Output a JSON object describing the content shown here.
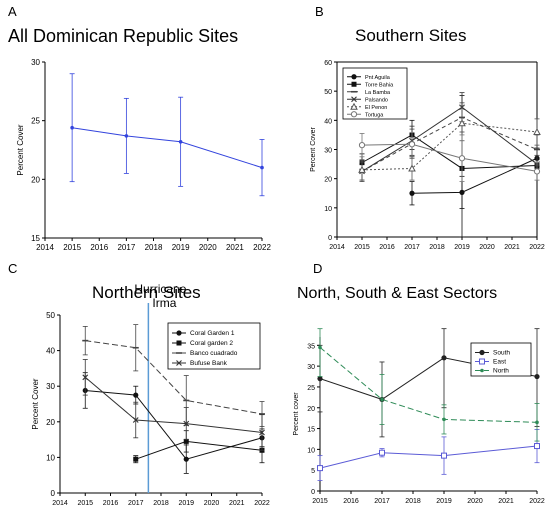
{
  "chart_data": [
    {
      "id": "A",
      "panel_label": "A",
      "title": "All Dominican Republic Sites",
      "type": "line",
      "ylabel": "Percent Cover",
      "xlabel": "",
      "xlim": [
        2014,
        2022
      ],
      "ylim": [
        15,
        30
      ],
      "xticks": [
        2014,
        2015,
        2016,
        2017,
        2018,
        2019,
        2020,
        2021,
        2022
      ],
      "yticks": [
        15,
        20,
        25,
        30
      ],
      "grid": false,
      "series": [
        {
          "color": "#3344dd",
          "dash": "",
          "marker": "dot-small",
          "points": [
            [
              2015,
              24.4,
              4.6
            ],
            [
              2017,
              23.7,
              3.2
            ],
            [
              2019,
              23.2,
              3.8
            ],
            [
              2022,
              21.0,
              2.4
            ]
          ]
        }
      ]
    },
    {
      "id": "B",
      "panel_label": "B",
      "title": "Southern Sites",
      "type": "line",
      "ylabel": "Percent Cover",
      "xlabel": "",
      "xlim": [
        2014,
        2022
      ],
      "ylim": [
        0,
        60
      ],
      "xticks": [
        2014,
        2015,
        2016,
        2017,
        2018,
        2019,
        2020,
        2021,
        2022
      ],
      "yticks": [
        0,
        10,
        20,
        30,
        40,
        50,
        60
      ],
      "grid": false,
      "legend_position": "top-left",
      "series": [
        {
          "name": "Pnt Aguila",
          "color": "#111111",
          "dash": "",
          "marker": "filled-circle",
          "points": [
            [
              2017,
              15.0,
              4.0
            ],
            [
              2019,
              15.3,
              5.5
            ],
            [
              2022,
              27.0,
              3.5
            ]
          ]
        },
        {
          "name": "Torre Bahia",
          "color": "#111111",
          "dash": "",
          "marker": "filled-square",
          "points": [
            [
              2015,
              25.5,
              3.0
            ],
            [
              2017,
              35.0,
              5.0
            ],
            [
              2019,
              23.5,
              25.0
            ],
            [
              2022,
              24.5,
              2.0
            ]
          ]
        },
        {
          "name": "La Bamba",
          "color": "#444444",
          "dash": "4,3",
          "marker": "dash",
          "points": [
            [
              2015,
              22.5,
              3.5
            ],
            [
              2017,
              32.0,
              5.0
            ],
            [
              2019,
              41.0,
              5.0
            ],
            [
              2022,
              30.0,
              5.0
            ]
          ]
        },
        {
          "name": "Palsando",
          "color": "#333333",
          "dash": "",
          "marker": "x",
          "points": [
            [
              2015,
              22.5,
              3.0
            ],
            [
              2017,
              33.0,
              5.0
            ],
            [
              2019,
              44.5,
              5.0
            ],
            [
              2022,
              25.0,
              3.0
            ]
          ]
        },
        {
          "name": "El Penon",
          "color": "#555555",
          "dash": "2,2",
          "marker": "open-triangle",
          "points": [
            [
              2015,
              23.0,
              3.5
            ],
            [
              2017,
              23.5,
              4.0
            ],
            [
              2019,
              39.0,
              6.0
            ],
            [
              2022,
              36.0,
              4.5
            ]
          ]
        },
        {
          "name": "Tortuga",
          "color": "#777777",
          "dash": "",
          "marker": "open-circle",
          "points": [
            [
              2015,
              31.5,
              4.0
            ],
            [
              2017,
              31.8,
              4.0
            ],
            [
              2019,
              27.0,
              8.0
            ],
            [
              2022,
              22.5,
              3.0
            ]
          ]
        }
      ]
    },
    {
      "id": "C",
      "panel_label": "C",
      "title": "Northern Sites",
      "type": "line",
      "ylabel": "Percent Cover",
      "xlabel": "",
      "xlim": [
        2014,
        2022
      ],
      "ylim": [
        0,
        50
      ],
      "xticks": [
        2014,
        2015,
        2016,
        2017,
        2018,
        2019,
        2020,
        2021,
        2022
      ],
      "yticks": [
        0,
        10,
        20,
        30,
        40,
        50
      ],
      "grid": false,
      "legend_position": "top-right",
      "annotation": {
        "text_line1": "Hurricane",
        "text_line2": "Irma",
        "x": 2017.5,
        "color": "#5b9bd5"
      },
      "series": [
        {
          "name": "Coral Garden 1",
          "color": "#111111",
          "dash": "",
          "marker": "filled-circle",
          "points": [
            [
              2015,
              28.8,
              5.0
            ],
            [
              2017,
              27.5,
              2.5
            ],
            [
              2019,
              9.5,
              4.0
            ],
            [
              2022,
              15.5,
              2.5
            ]
          ]
        },
        {
          "name": "Coral garden 2",
          "color": "#111111",
          "dash": "",
          "marker": "filled-square",
          "points": [
            [
              2017,
              9.5,
              1.0
            ],
            [
              2019,
              14.5,
              3.0
            ],
            [
              2022,
              12.0,
              3.5
            ]
          ]
        },
        {
          "name": "Banco cuadrado",
          "color": "#444444",
          "dash": "6,3",
          "marker": "dash",
          "points": [
            [
              2015,
              42.8,
              4.0
            ],
            [
              2017,
              40.8,
              6.5
            ],
            [
              2019,
              26.0,
              7.0
            ],
            [
              2022,
              22.2,
              3.5
            ]
          ]
        },
        {
          "name": "Bufuse Bank",
          "color": "#333333",
          "dash": "",
          "marker": "x",
          "points": [
            [
              2015,
              32.5,
              5.0
            ],
            [
              2017,
              20.5,
              5.0
            ],
            [
              2019,
              19.5,
              4.5
            ],
            [
              2022,
              17.0,
              5.0
            ]
          ]
        }
      ]
    },
    {
      "id": "D",
      "panel_label": "D",
      "title": "North, South & East Sectors",
      "type": "line",
      "ylabel": "Percent cover",
      "xlabel": "",
      "xlim": [
        2015,
        2022
      ],
      "ylim": [
        0,
        37
      ],
      "xticks": [
        2015,
        2016,
        2017,
        2018,
        2019,
        2020,
        2021,
        2022
      ],
      "yticks": [
        0,
        5,
        10,
        15,
        20,
        25,
        30,
        35
      ],
      "grid": false,
      "legend_position": "top-right",
      "series": [
        {
          "name": "South",
          "color": "#222222",
          "dash": "",
          "marker": "filled-circle",
          "points": [
            [
              2015,
              27.0,
              8.0
            ],
            [
              2017,
              22.0,
              9.0
            ],
            [
              2019,
              32.0,
              12.0
            ],
            [
              2022,
              27.5,
              12.0
            ]
          ]
        },
        {
          "name": "East",
          "color": "#5b5bd6",
          "dash": "",
          "marker": "open-square",
          "points": [
            [
              2015,
              5.5,
              3.0
            ],
            [
              2017,
              9.2,
              1.0
            ],
            [
              2019,
              8.5,
              4.5
            ],
            [
              2022,
              10.8,
              4.0
            ]
          ]
        },
        {
          "name": "North",
          "color": "#2e8b57",
          "dash": "6,3",
          "marker": "filled-circle-small",
          "points": [
            [
              2015,
              34.5,
              7.0
            ],
            [
              2017,
              22.0,
              6.0
            ],
            [
              2019,
              17.2,
              3.5
            ],
            [
              2022,
              16.5,
              4.5
            ]
          ]
        }
      ]
    }
  ]
}
